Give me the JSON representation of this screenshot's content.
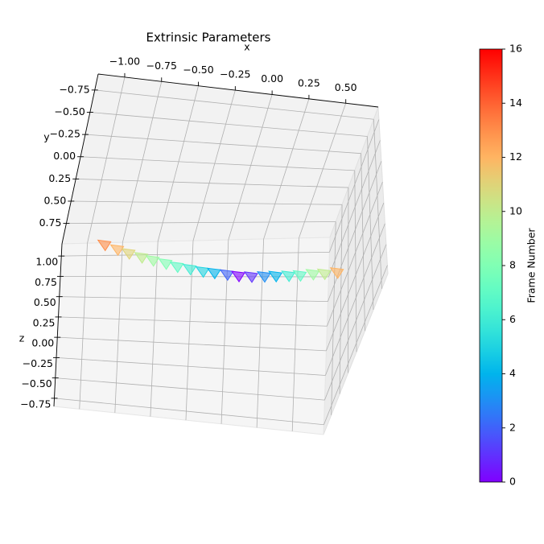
{
  "chart_data": {
    "type": "scatter3d",
    "title": "Extrinsic Parameters",
    "xlabel": "x",
    "ylabel": "y",
    "zlabel": "z",
    "xlim": [
      -1.18,
      0.72
    ],
    "ylim": [
      -0.93,
      0.98
    ],
    "zlim": [
      -0.85,
      1.15
    ],
    "xticks": [
      {
        "value": -1,
        "label": "−1.00"
      },
      {
        "value": -0.75,
        "label": "−0.75"
      },
      {
        "value": -0.5,
        "label": "−0.50"
      },
      {
        "value": -0.25,
        "label": "−0.25"
      },
      {
        "value": 0,
        "label": "0.00"
      },
      {
        "value": 0.25,
        "label": "0.25"
      },
      {
        "value": 0.5,
        "label": "0.50"
      }
    ],
    "yticks": [
      {
        "value": -0.75,
        "label": "−0.75"
      },
      {
        "value": -0.5,
        "label": "−0.50"
      },
      {
        "value": -0.25,
        "label": "−0.25"
      },
      {
        "value": 0,
        "label": "0.00"
      },
      {
        "value": 0.25,
        "label": "0.25"
      },
      {
        "value": 0.5,
        "label": "0.50"
      },
      {
        "value": 0.75,
        "label": "0.75"
      }
    ],
    "zticks": [
      {
        "value": -0.75,
        "label": "−0.75"
      },
      {
        "value": -0.5,
        "label": "−0.50"
      },
      {
        "value": -0.25,
        "label": "−0.25"
      },
      {
        "value": 0,
        "label": "0.00"
      },
      {
        "value": 0.25,
        "label": "0.25"
      },
      {
        "value": 0.5,
        "label": "0.50"
      },
      {
        "value": 0.75,
        "label": "0.75"
      },
      {
        "value": 1,
        "label": "1.00"
      }
    ],
    "grid": true,
    "points": {
      "x": [
        -0.94,
        -0.85,
        -0.77,
        -0.68,
        -0.6,
        -0.51,
        -0.43,
        -0.34,
        -0.25,
        -0.17,
        -0.08,
        0.0,
        0.09,
        0.18,
        0.26,
        0.35,
        0.43,
        0.52,
        0.6,
        0.69
      ],
      "y": [
        0.5,
        0.5,
        0.5,
        0.5,
        0.5,
        0.5,
        0.5,
        0.5,
        0.5,
        0.5,
        0.5,
        0.5,
        0.5,
        0.5,
        0.5,
        0.5,
        0.5,
        0.5,
        0.5,
        0.5
      ],
      "z": [
        0.63,
        0.58,
        0.54,
        0.5,
        0.47,
        0.44,
        0.41,
        0.39,
        0.37,
        0.36,
        0.35,
        0.34,
        0.34,
        0.35,
        0.36,
        0.37,
        0.38,
        0.4,
        0.41,
        0.43
      ],
      "frame": [
        13,
        12,
        11,
        10,
        9,
        8,
        7,
        6,
        5,
        4,
        2,
        0,
        1,
        3,
        4,
        6,
        7,
        9,
        10,
        12
      ]
    },
    "colormap": "rainbow",
    "colorbar": {
      "label": "Frame Number",
      "clim": [
        0,
        16
      ],
      "ticks": [
        0,
        2,
        4,
        6,
        8,
        10,
        12,
        14,
        16
      ]
    }
  }
}
